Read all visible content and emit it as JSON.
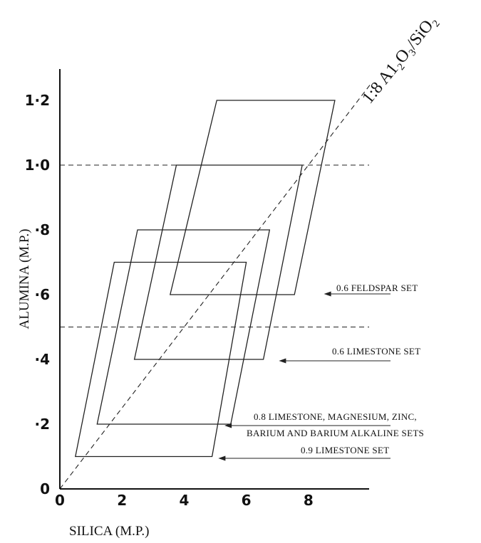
{
  "chart_data": {
    "type": "area",
    "title": "",
    "xlabel": "SILICA (M.P.)",
    "ylabel": "ALUMINA (M.P.)",
    "xlim": [
      0,
      10
    ],
    "ylim": [
      0,
      1.3
    ],
    "x_ticks": [
      {
        "value": 0,
        "label": "0"
      },
      {
        "value": 2,
        "label": "2"
      },
      {
        "value": 4,
        "label": "4"
      },
      {
        "value": 6,
        "label": "6"
      },
      {
        "value": 8,
        "label": "8"
      }
    ],
    "y_ticks": [
      {
        "value": 0,
        "label": "0"
      },
      {
        "value": 0.2,
        "label": "·2"
      },
      {
        "value": 0.4,
        "label": "·4"
      },
      {
        "value": 0.6,
        "label": "·6"
      },
      {
        "value": 0.8,
        "label": "·8"
      },
      {
        "value": 1.0,
        "label": "1·0"
      },
      {
        "value": 1.2,
        "label": "1·2"
      }
    ],
    "grid": false,
    "reference_lines": [
      {
        "kind": "horizontal",
        "y": 1.0,
        "style": "dashed"
      },
      {
        "kind": "horizontal",
        "y": 0.5,
        "style": "dashed"
      },
      {
        "kind": "diagonal",
        "ratio_label": "1:8 A1₂O₃/SiO₂",
        "points": [
          [
            0,
            0
          ],
          [
            10,
            1.25
          ]
        ],
        "style": "dashed"
      }
    ],
    "regions": [
      {
        "annotation": "0.6 FELDSPAR SET",
        "points": [
          [
            3.55,
            0.6
          ],
          [
            7.55,
            0.6
          ],
          [
            8.85,
            1.2
          ],
          [
            5.05,
            1.2
          ]
        ]
      },
      {
        "annotation": "0.6 LIMESTONE SET",
        "points": [
          [
            2.4,
            0.4
          ],
          [
            6.55,
            0.4
          ],
          [
            7.8,
            1.0
          ],
          [
            3.75,
            1.0
          ]
        ]
      },
      {
        "annotation": "0.8 LIMESTONE, MAGNESIUM, ZINC, BARIUM AND BARIUM ALKALINE SETS",
        "points": [
          [
            1.2,
            0.2
          ],
          [
            5.5,
            0.2
          ],
          [
            6.75,
            0.8
          ],
          [
            2.5,
            0.8
          ]
        ]
      },
      {
        "annotation": "0.9 LIMESTONE SET",
        "points": [
          [
            0.5,
            0.1
          ],
          [
            4.9,
            0.1
          ],
          [
            6.0,
            0.7
          ],
          [
            1.75,
            0.7
          ]
        ]
      }
    ],
    "annotations": [
      {
        "lines": [
          "0.6 FELDSPAR SET"
        ],
        "arrow_to": [
          8.5,
          0.6
        ]
      },
      {
        "lines": [
          "0.6 LIMESTONE SET"
        ],
        "arrow_to": [
          7.05,
          0.4
        ]
      },
      {
        "lines": [
          "0.8 LIMESTONE, MAGNESIUM, ZINC,",
          "BARIUM AND BARIUM ALKALINE SETS"
        ],
        "arrow_to": [
          5.3,
          0.2
        ]
      },
      {
        "lines": [
          "0.9 LIMESTONE SET"
        ],
        "arrow_to": [
          5.1,
          0.1
        ]
      }
    ]
  }
}
